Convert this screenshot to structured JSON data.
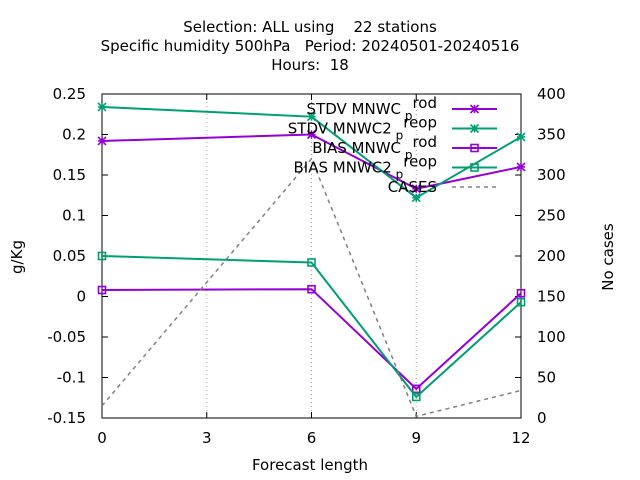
{
  "chart_data": {
    "type": "line",
    "title": [
      "Selection: ALL using    22 stations",
      "Specific humidity 500hPa   Period: 20240501-20240516",
      "Hours:  18"
    ],
    "xlabel": "Forecast length",
    "ylabel": "g/Kg",
    "y2label": "No cases",
    "x": [
      0,
      6,
      9,
      12
    ],
    "xticks": [
      "0",
      "3",
      "6",
      "9",
      "12"
    ],
    "xlim": [
      0,
      12
    ],
    "ylim": [
      -0.15,
      0.25
    ],
    "yticks": [
      "-0.15",
      "-0.1",
      "-0.05",
      "0",
      "0.05",
      "0.1",
      "0.15",
      "0.2",
      "0.25"
    ],
    "y2lim": [
      0,
      400
    ],
    "y2ticks": [
      "0",
      "50",
      "100",
      "150",
      "200",
      "250",
      "300",
      "350",
      "400"
    ],
    "grid": "vertical dotted at x ticks",
    "legend_position": "top-right",
    "series": [
      {
        "name": "STDV MNWC_prod",
        "legend_main": "STDV MNWC",
        "legend_sub": "p",
        "legend_rest": "rod",
        "color": "#9400d3",
        "marker": "star",
        "axis": "y1",
        "values": [
          0.192,
          0.2,
          0.133,
          0.16
        ]
      },
      {
        "name": "STDV MNWC2_preop",
        "legend_main": "STDV MNWC2",
        "legend_sub": "p",
        "legend_rest": "reop",
        "color": "#009e73",
        "marker": "star",
        "axis": "y1",
        "values": [
          0.234,
          0.222,
          0.122,
          0.197
        ]
      },
      {
        "name": "BIAS MNWC_prod",
        "legend_main": "BIAS MNWC",
        "legend_sub": "p",
        "legend_rest": "rod",
        "color": "#9400d3",
        "marker": "square",
        "axis": "y1",
        "values": [
          0.008,
          0.009,
          -0.114,
          0.004
        ]
      },
      {
        "name": "BIAS MNWC2_preop",
        "legend_main": "BIAS MNWC2",
        "legend_sub": "p",
        "legend_rest": "reop",
        "color": "#009e73",
        "marker": "square",
        "axis": "y1",
        "values": [
          0.05,
          0.042,
          -0.124,
          -0.007
        ]
      },
      {
        "name": "CASES",
        "legend_main": "CASES",
        "legend_sub": "",
        "legend_rest": "",
        "color": "#808080",
        "marker": "none",
        "dashed": true,
        "axis": "y2",
        "values": [
          15,
          320,
          2,
          34
        ]
      }
    ]
  }
}
